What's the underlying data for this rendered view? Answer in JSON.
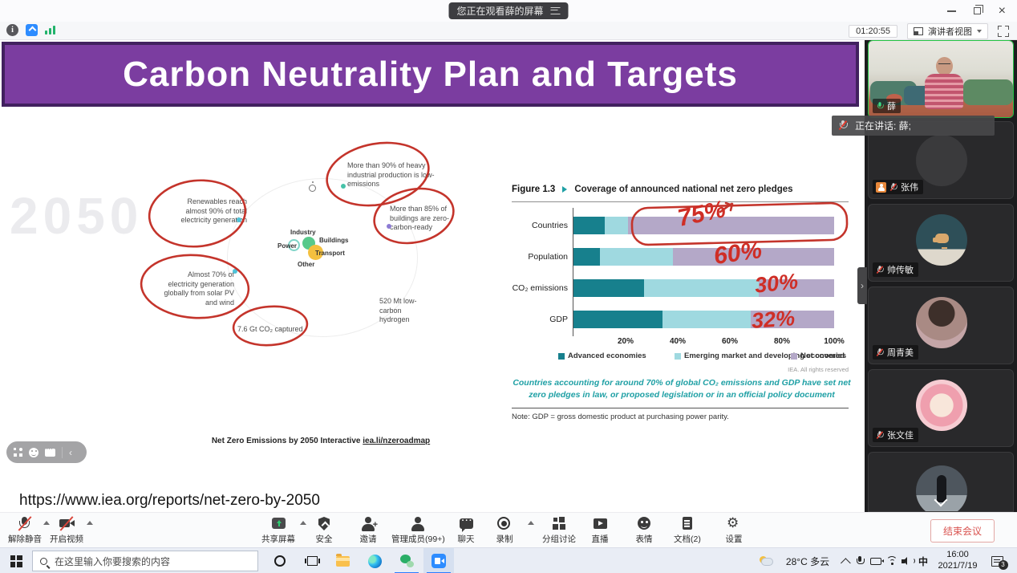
{
  "window": {
    "watching_banner": "您正在观看薛的屏幕",
    "timer": "01:20:55",
    "view_mode_label": "演讲者视图",
    "speaking_toast": "正在讲话: 薛;"
  },
  "slide": {
    "title": "Carbon Neutrality Plan and Targets",
    "watermark": "2050",
    "url": "https://www.iea.org/reports/net-zero-by-2050",
    "interactive_caption": "Net Zero Emissions by 2050 Interactive",
    "interactive_link": "iea.li/nzeroadmap",
    "infographic": {
      "annotations": [
        {
          "text": "More than 90% of heavy industrial production is low-emissions",
          "circled": true
        },
        {
          "text": "Renewables reach almost 90% of total electricity generation",
          "circled": true
        },
        {
          "text": "More than 85% of buildings are zero-carbon-ready",
          "circled": true
        },
        {
          "text": "Almost 70% of electricity generation globally from solar PV and wind",
          "circled": true
        },
        {
          "text": "520 Mt low-carbon hydrogen",
          "circled": false
        },
        {
          "text": "7.6 Gt CO₂ captured",
          "circled": true
        }
      ],
      "bubbles": [
        "Industry",
        "Power",
        "Buildings",
        "Transport",
        "Other"
      ]
    }
  },
  "chart_data": {
    "type": "bar",
    "orientation": "horizontal",
    "stacked": true,
    "figure_label": "Figure 1.3",
    "title": "Coverage of announced national net zero pledges",
    "categories": [
      "Countries",
      "Population",
      "CO₂ emissions",
      "GDP"
    ],
    "series": [
      {
        "name": "Advanced economies",
        "color": "#17808d",
        "values": [
          12,
          10,
          27,
          34
        ]
      },
      {
        "name": "Emerging market and developing economies",
        "color": "#9fd9e0",
        "values": [
          9,
          28,
          44,
          34
        ]
      },
      {
        "name": "Not covered",
        "color": "#b4a8c8",
        "values": [
          79,
          62,
          29,
          32
        ]
      }
    ],
    "xlim": [
      0,
      100
    ],
    "x_ticks": [
      "20%",
      "40%",
      "60%",
      "80%",
      "100%"
    ],
    "legend_position": "bottom",
    "source": "IEA. All rights reserved",
    "caption": "Countries accounting for around 70% of global CO₂ emissions and GDP have set net zero pledges in law, or proposed legislation or in an official policy document",
    "note": "Note: GDP = gross domestic product at purchasing power parity.",
    "handwritten": [
      {
        "text": "75%"
      },
      {
        "text": "60%"
      },
      {
        "text": "30%"
      },
      {
        "text": "32%"
      }
    ],
    "annotation_color": "#cf2e26"
  },
  "toolbar": {
    "buttons": [
      {
        "label": "解除静音",
        "icon": "mic-off-icon"
      },
      {
        "label": "开启视频",
        "icon": "camera-off-icon"
      },
      {
        "label": "共享屏幕",
        "icon": "share-screen-icon"
      },
      {
        "label": "安全",
        "icon": "shield-icon"
      },
      {
        "label": "邀请",
        "icon": "invite-icon"
      },
      {
        "label": "管理成员(99+)",
        "icon": "members-icon"
      },
      {
        "label": "聊天",
        "icon": "chat-icon"
      },
      {
        "label": "录制",
        "icon": "record-icon"
      },
      {
        "label": "分组讨论",
        "icon": "breakout-icon"
      },
      {
        "label": "直播",
        "icon": "live-icon"
      },
      {
        "label": "表情",
        "icon": "emoji-icon"
      },
      {
        "label": "文档(2)",
        "icon": "document-icon"
      },
      {
        "label": "设置",
        "icon": "gear-icon"
      }
    ],
    "end_meeting_label": "结束会议"
  },
  "participants": [
    {
      "name": "薛",
      "muted": false
    },
    {
      "name": "张伟",
      "muted": true
    },
    {
      "name": "帅传敏",
      "muted": true
    },
    {
      "name": "周青美",
      "muted": true
    },
    {
      "name": "张文佳",
      "muted": true
    },
    {
      "name": "",
      "muted": true
    }
  ],
  "taskbar": {
    "search_placeholder": "在这里输入你要搜索的内容",
    "weather": "28°C 多云",
    "ime": "中",
    "time": "16:00",
    "date": "2021/7/19",
    "notification_count": "3"
  },
  "colors": {
    "banner_purple": "#7b3da0",
    "banner_border": "#41215f",
    "caption_teal": "#1fa0a5"
  }
}
